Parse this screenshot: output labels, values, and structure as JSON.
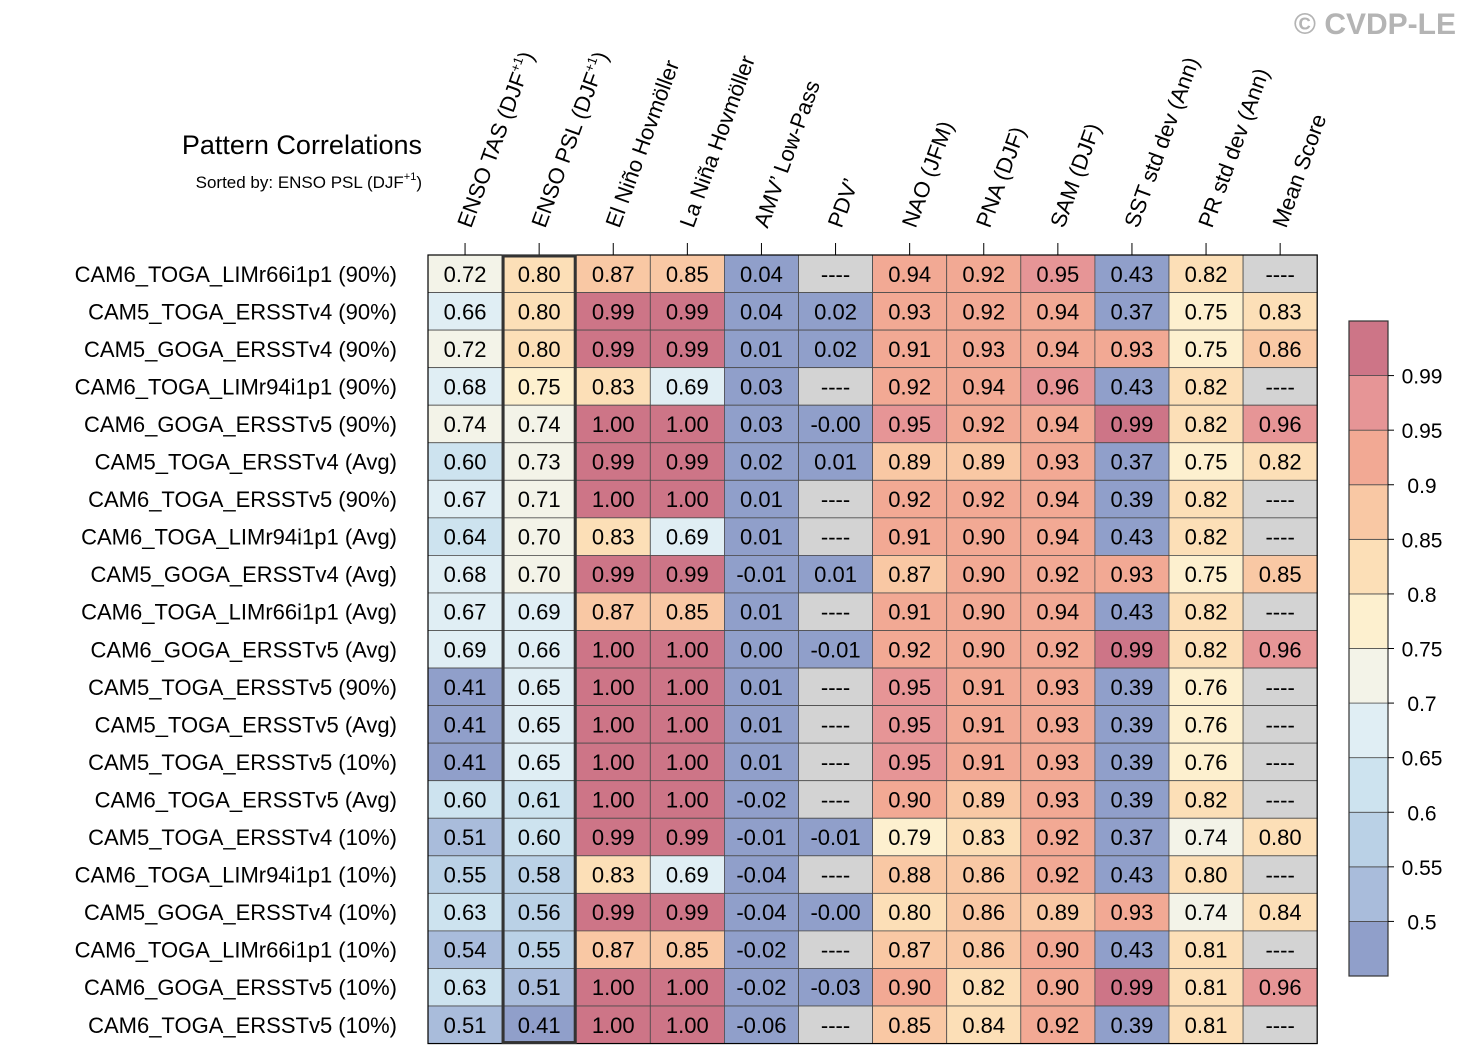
{
  "watermark": "© CVDP-LE",
  "chart_data": {
    "type": "heatmap",
    "title": "Pattern Correlations",
    "subtitle": "Sorted by: ENSO PSL (DJF",
    "subtitle_sup": "+1",
    "subtitle_close": ")",
    "highlighted_column": 1,
    "columns": [
      {
        "label": "ENSO TAS (DJF",
        "sup": "+1",
        "close": ")"
      },
      {
        "label": "ENSO PSL (DJF",
        "sup": "+1",
        "close": ")"
      },
      {
        "label": "El Niño Hovmöller"
      },
      {
        "label": "La Niña Hovmöller"
      },
      {
        "label": "AMV’ Low-Pass"
      },
      {
        "label": "PDV’"
      },
      {
        "label": "NAO (JFM)"
      },
      {
        "label": "PNA (DJF)"
      },
      {
        "label": "SAM (DJF)"
      },
      {
        "label": "SST std dev (Ann)"
      },
      {
        "label": "PR std dev (Ann)"
      },
      {
        "label": "Mean Score"
      }
    ],
    "rows": [
      {
        "name": "CAM6_TOGA_LIMr66i1p1 (90%)",
        "values": [
          "0.72",
          "0.80",
          "0.87",
          "0.85",
          "0.04",
          "----",
          "0.94",
          "0.92",
          "0.95",
          "0.43",
          "0.82",
          "----"
        ]
      },
      {
        "name": "CAM5_TOGA_ERSSTv4 (90%)",
        "values": [
          "0.66",
          "0.80",
          "0.99",
          "0.99",
          "0.04",
          "0.02",
          "0.93",
          "0.92",
          "0.94",
          "0.37",
          "0.75",
          "0.83"
        ]
      },
      {
        "name": "CAM5_GOGA_ERSSTv4 (90%)",
        "values": [
          "0.72",
          "0.80",
          "0.99",
          "0.99",
          "0.01",
          "0.02",
          "0.91",
          "0.93",
          "0.94",
          "0.93",
          "0.75",
          "0.86"
        ]
      },
      {
        "name": "CAM6_TOGA_LIMr94i1p1 (90%)",
        "values": [
          "0.68",
          "0.75",
          "0.83",
          "0.69",
          "0.03",
          "----",
          "0.92",
          "0.94",
          "0.96",
          "0.43",
          "0.82",
          "----"
        ]
      },
      {
        "name": "CAM6_GOGA_ERSSTv5 (90%)",
        "values": [
          "0.74",
          "0.74",
          "1.00",
          "1.00",
          "0.03",
          "-0.00",
          "0.95",
          "0.92",
          "0.94",
          "0.99",
          "0.82",
          "0.96"
        ]
      },
      {
        "name": "CAM5_TOGA_ERSSTv4 (Avg)",
        "values": [
          "0.60",
          "0.73",
          "0.99",
          "0.99",
          "0.02",
          "0.01",
          "0.89",
          "0.89",
          "0.93",
          "0.37",
          "0.75",
          "0.82"
        ]
      },
      {
        "name": "CAM6_TOGA_ERSSTv5 (90%)",
        "values": [
          "0.67",
          "0.71",
          "1.00",
          "1.00",
          "0.01",
          "----",
          "0.92",
          "0.92",
          "0.94",
          "0.39",
          "0.82",
          "----"
        ]
      },
      {
        "name": "CAM6_TOGA_LIMr94i1p1 (Avg)",
        "values": [
          "0.64",
          "0.70",
          "0.83",
          "0.69",
          "0.01",
          "----",
          "0.91",
          "0.90",
          "0.94",
          "0.43",
          "0.82",
          "----"
        ]
      },
      {
        "name": "CAM5_GOGA_ERSSTv4 (Avg)",
        "values": [
          "0.68",
          "0.70",
          "0.99",
          "0.99",
          "-0.01",
          "0.01",
          "0.87",
          "0.90",
          "0.92",
          "0.93",
          "0.75",
          "0.85"
        ]
      },
      {
        "name": "CAM6_TOGA_LIMr66i1p1 (Avg)",
        "values": [
          "0.67",
          "0.69",
          "0.87",
          "0.85",
          "0.01",
          "----",
          "0.91",
          "0.90",
          "0.94",
          "0.43",
          "0.82",
          "----"
        ]
      },
      {
        "name": "CAM6_GOGA_ERSSTv5 (Avg)",
        "values": [
          "0.69",
          "0.66",
          "1.00",
          "1.00",
          "0.00",
          "-0.01",
          "0.92",
          "0.90",
          "0.92",
          "0.99",
          "0.82",
          "0.96"
        ]
      },
      {
        "name": "CAM5_TOGA_ERSSTv5 (90%)",
        "values": [
          "0.41",
          "0.65",
          "1.00",
          "1.00",
          "0.01",
          "----",
          "0.95",
          "0.91",
          "0.93",
          "0.39",
          "0.76",
          "----"
        ]
      },
      {
        "name": "CAM5_TOGA_ERSSTv5 (Avg)",
        "values": [
          "0.41",
          "0.65",
          "1.00",
          "1.00",
          "0.01",
          "----",
          "0.95",
          "0.91",
          "0.93",
          "0.39",
          "0.76",
          "----"
        ]
      },
      {
        "name": "CAM5_TOGA_ERSSTv5 (10%)",
        "values": [
          "0.41",
          "0.65",
          "1.00",
          "1.00",
          "0.01",
          "----",
          "0.95",
          "0.91",
          "0.93",
          "0.39",
          "0.76",
          "----"
        ]
      },
      {
        "name": "CAM6_TOGA_ERSSTv5 (Avg)",
        "values": [
          "0.60",
          "0.61",
          "1.00",
          "1.00",
          "-0.02",
          "----",
          "0.90",
          "0.89",
          "0.93",
          "0.39",
          "0.82",
          "----"
        ]
      },
      {
        "name": "CAM5_TOGA_ERSSTv4 (10%)",
        "values": [
          "0.51",
          "0.60",
          "0.99",
          "0.99",
          "-0.01",
          "-0.01",
          "0.79",
          "0.83",
          "0.92",
          "0.37",
          "0.74",
          "0.80"
        ]
      },
      {
        "name": "CAM6_TOGA_LIMr94i1p1 (10%)",
        "values": [
          "0.55",
          "0.58",
          "0.83",
          "0.69",
          "-0.04",
          "----",
          "0.88",
          "0.86",
          "0.92",
          "0.43",
          "0.80",
          "----"
        ]
      },
      {
        "name": "CAM5_GOGA_ERSSTv4 (10%)",
        "values": [
          "0.63",
          "0.56",
          "0.99",
          "0.99",
          "-0.04",
          "-0.00",
          "0.80",
          "0.86",
          "0.89",
          "0.93",
          "0.74",
          "0.84"
        ]
      },
      {
        "name": "CAM6_TOGA_LIMr66i1p1 (10%)",
        "values": [
          "0.54",
          "0.55",
          "0.87",
          "0.85",
          "-0.02",
          "----",
          "0.87",
          "0.86",
          "0.90",
          "0.43",
          "0.81",
          "----"
        ]
      },
      {
        "name": "CAM6_GOGA_ERSSTv5 (10%)",
        "values": [
          "0.63",
          "0.51",
          "1.00",
          "1.00",
          "-0.02",
          "-0.03",
          "0.90",
          "0.82",
          "0.90",
          "0.99",
          "0.81",
          "0.96"
        ]
      },
      {
        "name": "CAM6_TOGA_ERSSTv5 (10%)",
        "values": [
          "0.51",
          "0.41",
          "1.00",
          "1.00",
          "-0.06",
          "----",
          "0.85",
          "0.84",
          "0.92",
          "0.39",
          "0.81",
          "----"
        ]
      }
    ],
    "missing_label": "----",
    "missing_color": "#d3d3d3",
    "colorbar": {
      "levels": [
        "0.5",
        "0.55",
        "0.6",
        "0.65",
        "0.7",
        "0.75",
        "0.8",
        "0.85",
        "0.9",
        "0.95",
        "0.99"
      ],
      "colors": [
        "#909fca",
        "#a9bcdb",
        "#bad1e6",
        "#cde3ef",
        "#e0eef4",
        "#f3f3e8",
        "#fdf0cf",
        "#fcdfb7",
        "#f9c8a4",
        "#f2a994",
        "#e69596",
        "#cd7587"
      ]
    }
  }
}
